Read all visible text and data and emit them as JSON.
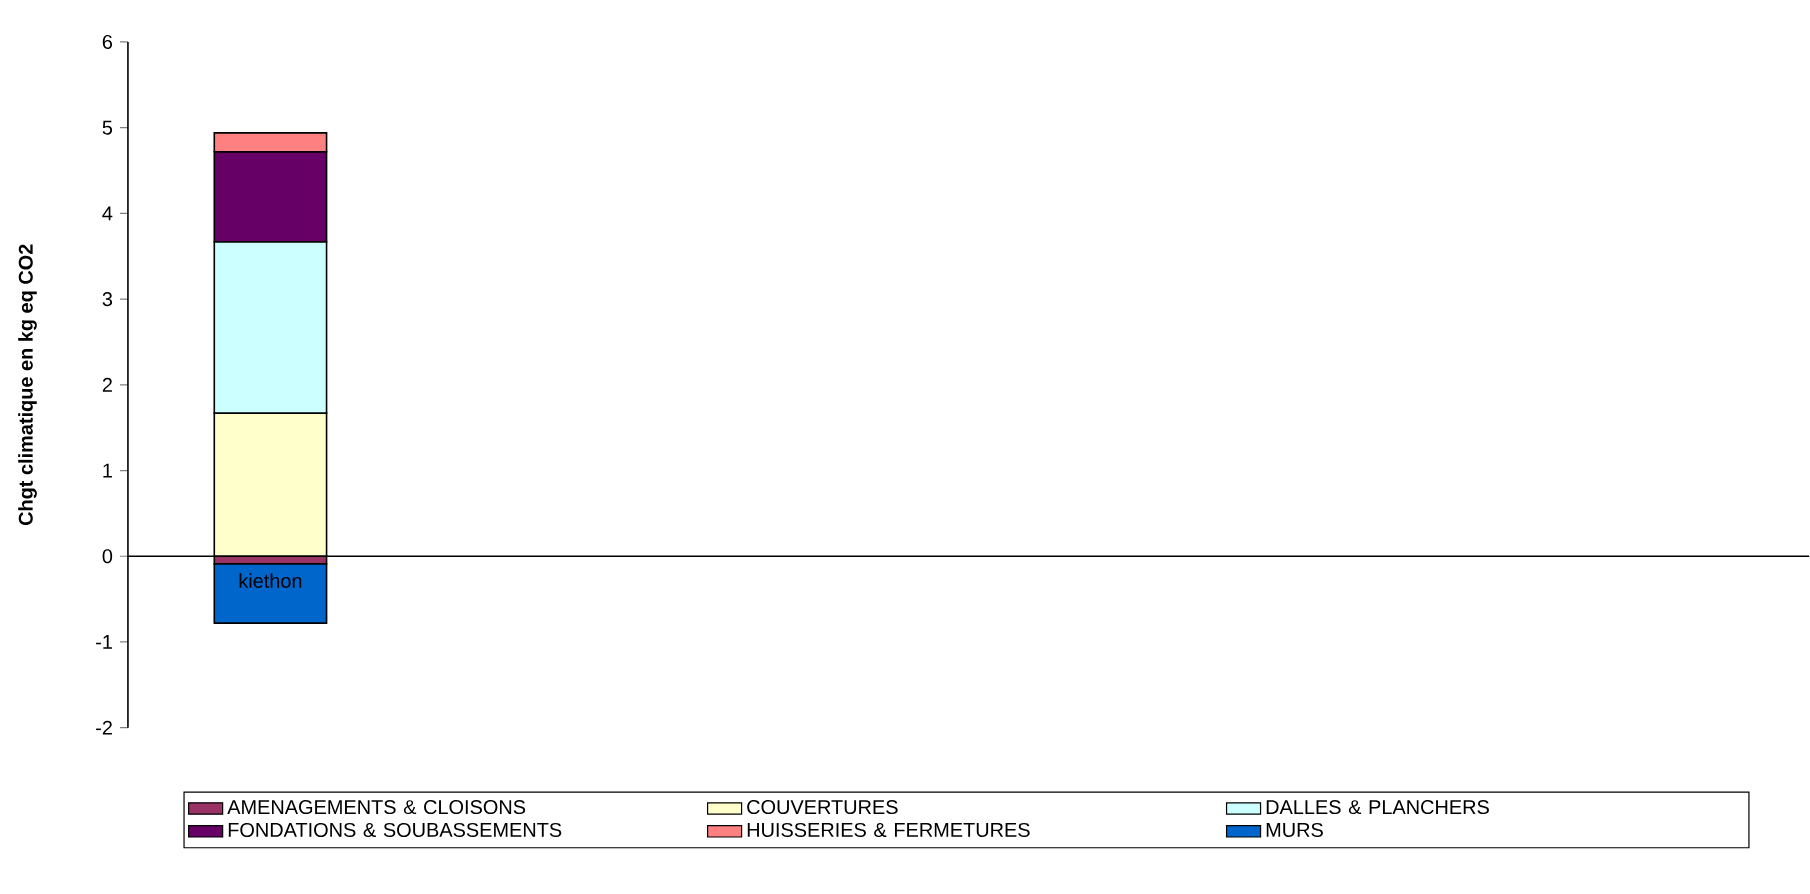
{
  "chart_data": {
    "type": "bar",
    "stacked": true,
    "ylabel": "Chgt climatique en kg eq CO2",
    "categories": [
      "kiethon",
      null,
      null,
      null,
      null,
      null
    ],
    "series": [
      {
        "name": "AMENAGEMENTS & CLOISONS",
        "color": "#993366",
        "values": [
          -0.09,
          null,
          null,
          null,
          null,
          null
        ]
      },
      {
        "name": "COUVERTURES",
        "color": "#ffffcc",
        "values": [
          1.67,
          null,
          null,
          null,
          null,
          null
        ]
      },
      {
        "name": "DALLES & PLANCHERS",
        "color": "#ccffff",
        "values": [
          2.0,
          null,
          null,
          null,
          null,
          null
        ]
      },
      {
        "name": "FONDATIONS & SOUBASSEMENTS",
        "color": "#660066",
        "values": [
          1.05,
          null,
          null,
          null,
          null,
          null
        ]
      },
      {
        "name": "HUISSERIES & FERMETURES",
        "color": "#ff8080",
        "values": [
          0.22,
          null,
          null,
          null,
          null,
          null
        ]
      },
      {
        "name": "MURS",
        "color": "#0066cc",
        "values": [
          -0.69,
          null,
          null,
          null,
          null,
          null
        ]
      }
    ],
    "ylim": [
      -2,
      6
    ],
    "yticks": [
      -2,
      -1,
      0,
      1,
      2,
      3,
      4,
      5,
      6
    ],
    "legend": "bottom"
  }
}
